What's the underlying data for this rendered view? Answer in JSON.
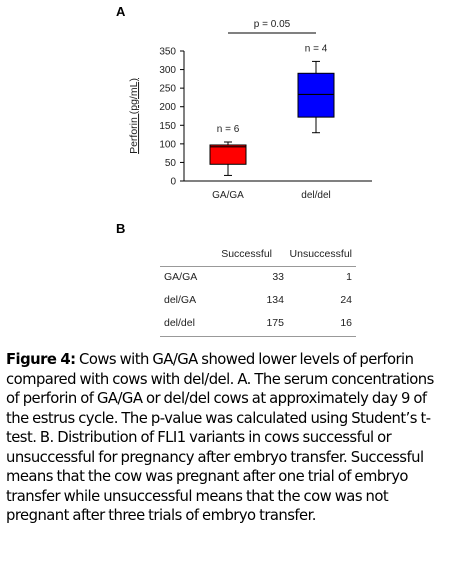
{
  "panel_a_label": "A",
  "panel_b_label": "B",
  "chart_data": {
    "type": "box",
    "ylabel": "Perforin (pg/mL)",
    "xlabel": "",
    "title": "",
    "ylim": [
      0,
      350
    ],
    "yticks": [
      "0",
      "50",
      "100",
      "150",
      "200",
      "250",
      "300",
      "350"
    ],
    "categories": [
      "GA/GA",
      "del/del"
    ],
    "boxes": [
      {
        "category": "GA/GA",
        "min": 15,
        "q1": 45,
        "median": 92,
        "q3": 97,
        "max": 105,
        "n_label": "n = 6",
        "color": "#ff0000"
      },
      {
        "category": "del/del",
        "min": 130,
        "q1": 172,
        "median": 233,
        "q3": 290,
        "max": 322,
        "n_label": "n = 4",
        "color": "#0000ff"
      }
    ],
    "significance": {
      "label": "p = 0.05",
      "between": [
        "GA/GA",
        "del/del"
      ]
    }
  },
  "table": {
    "headers": [
      "",
      "Successful",
      "Unsuccessful"
    ],
    "rows": [
      [
        "GA/GA",
        "33",
        "1"
      ],
      [
        "del/GA",
        "134",
        "24"
      ],
      [
        "del/del",
        "175",
        "16"
      ]
    ]
  },
  "caption": {
    "label": "Figure 4:",
    "text": "Cows with GA/GA showed lower levels of perforin compared with cows with del/del. A. The serum concentrations of perforin of GA/GA or del/del cows at approximately day 9 of the estrus cycle. The p-value was calculated using Student’s t-test. B. Distribution of FLI1 variants in cows successful or unsuccessful for pregnancy after embryo transfer. Successful means that the cow was pregnant after one trial of embryo transfer while unsuccessful means that the cow was not pregnant after three trials of embryo transfer."
  }
}
